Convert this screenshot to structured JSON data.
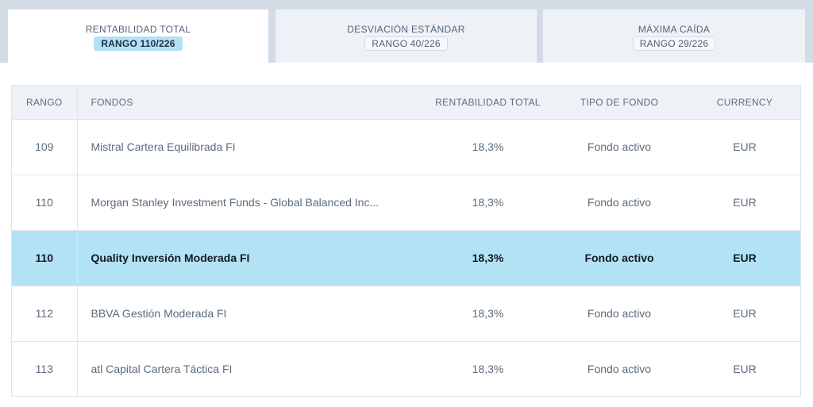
{
  "tabs": [
    {
      "title": "RENTABILIDAD TOTAL",
      "rank": "RANGO 110/226",
      "active": true
    },
    {
      "title": "DESVIACIÓN ESTÁNDAR",
      "rank": "RANGO 40/226",
      "active": false
    },
    {
      "title": "MÁXIMA CAÍDA",
      "rank": "RANGO 29/226",
      "active": false
    }
  ],
  "table": {
    "headers": {
      "rank": "RANGO",
      "fund": "FONDOS",
      "return": "RENTABILIDAD TOTAL",
      "type": "TIPO DE FONDO",
      "currency": "CURRENCY"
    },
    "rows": [
      {
        "rank": "109",
        "fund": "Mistral Cartera Equilibrada FI",
        "return": "18,3%",
        "type": "Fondo activo",
        "currency": "EUR"
      },
      {
        "rank": "110",
        "fund": "Morgan Stanley Investment Funds - Global Balanced Inc...",
        "return": "18,3%",
        "type": "Fondo activo",
        "currency": "EUR"
      },
      {
        "rank": "110",
        "fund": "Quality Inversión Moderada FI",
        "return": "18,3%",
        "type": "Fondo activo",
        "currency": "EUR",
        "highlighted": true
      },
      {
        "rank": "112",
        "fund": "BBVA Gestión Moderada FI",
        "return": "18,3%",
        "type": "Fondo activo",
        "currency": "EUR"
      },
      {
        "rank": "113",
        "fund": "atl Capital Cartera Táctica FI",
        "return": "18,3%",
        "type": "Fondo activo",
        "currency": "EUR"
      }
    ]
  },
  "colors": {
    "highlight_row": "#b3e2f5",
    "active_badge": "#b3e1f6",
    "tab_strip": "#d3dbe5"
  }
}
